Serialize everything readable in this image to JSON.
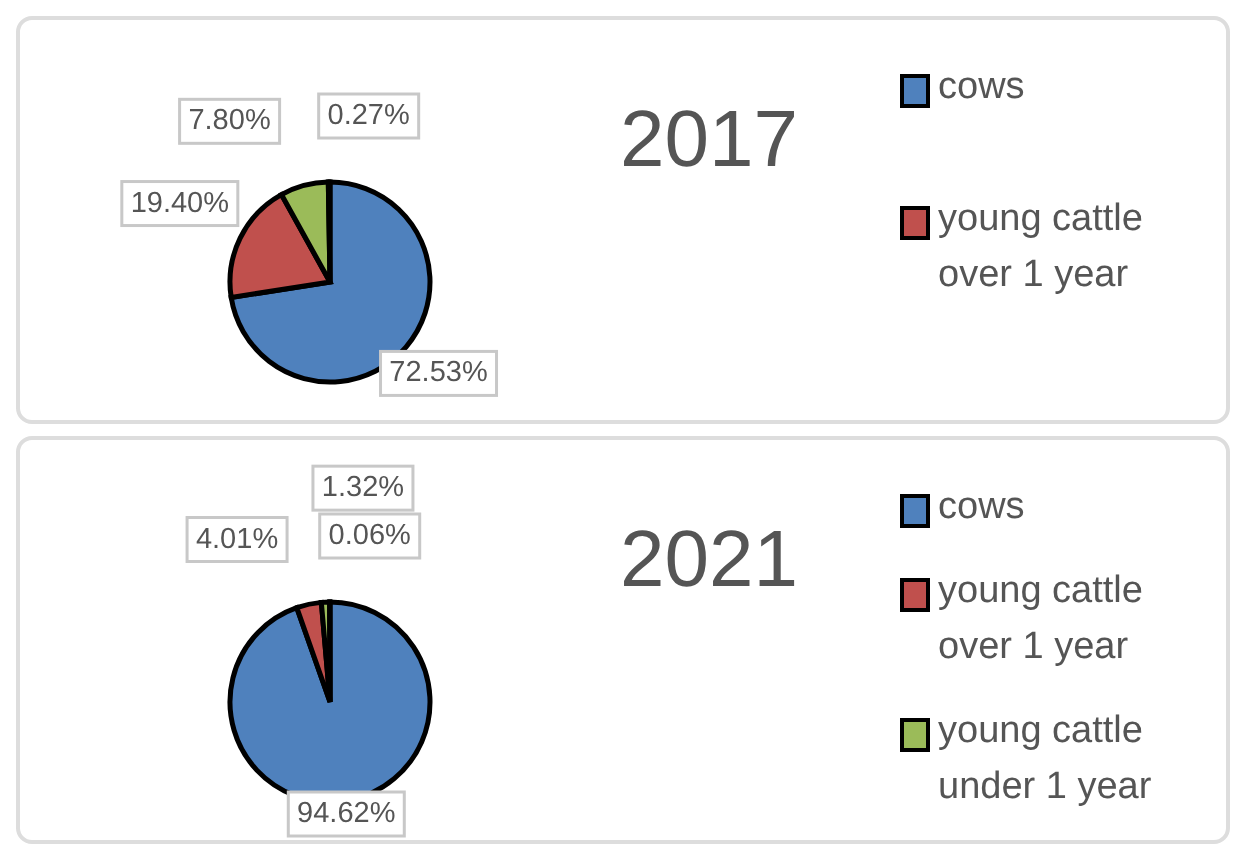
{
  "chart_data": [
    {
      "type": "pie",
      "title": "2017",
      "categories": [
        "cows",
        "young cattle over 1 year",
        null,
        null
      ],
      "values": [
        72.53,
        19.4,
        7.8,
        0.27
      ],
      "colors": [
        "#4f81bd",
        "#c0504d",
        "#9bbb59",
        "#8064a2"
      ],
      "value_labels": [
        "72.53%",
        "19.40%",
        "7.80%",
        "0.27%"
      ],
      "legend": "right"
    },
    {
      "type": "pie",
      "title": "2021",
      "categories": [
        "cows",
        "young cattle over 1 year",
        "young cattle under 1 year",
        null
      ],
      "values": [
        94.62,
        4.01,
        1.32,
        0.06
      ],
      "colors": [
        "#4f81bd",
        "#c0504d",
        "#9bbb59",
        "#8064a2"
      ],
      "value_labels": [
        "94.62%",
        "4.01%",
        "1.32%",
        "0.06%"
      ],
      "legend": "right"
    }
  ]
}
